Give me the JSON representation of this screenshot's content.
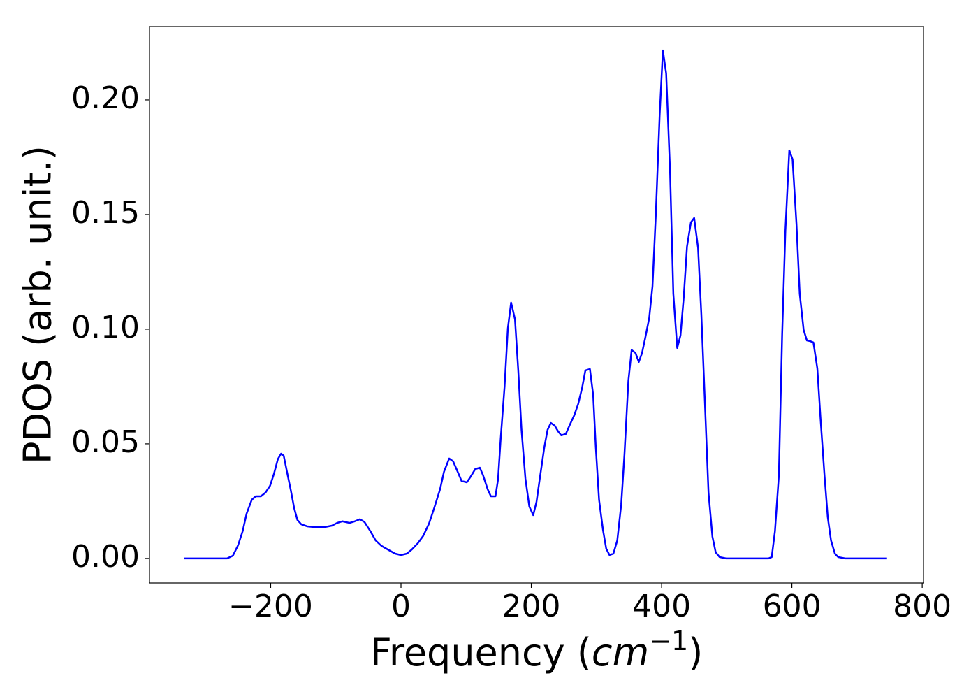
{
  "chart_data": {
    "type": "line",
    "ylabel": "PDOS (arb. unit.)",
    "xlabel": {
      "text": "Frequency (",
      "unit": "cm",
      "exponent": "−1",
      "close": ")"
    },
    "color": "#0000ff",
    "xlim": [
      -386,
      802
    ],
    "ylim": [
      -0.0107,
      0.232
    ],
    "xticks": [
      {
        "value": -200,
        "label": "−200"
      },
      0,
      200,
      400,
      600,
      800
    ],
    "yticks": [
      {
        "value": 0,
        "label": "0.00"
      },
      {
        "value": 0.05,
        "label": "0.05"
      },
      {
        "value": 0.1,
        "label": "0.10"
      },
      {
        "value": 0.15,
        "label": "0.15"
      },
      {
        "value": 0.2,
        "label": "0.20"
      }
    ],
    "grid": false,
    "x": [
      -333,
      -267,
      -258,
      -250,
      -243,
      -237,
      -229,
      -223,
      -215,
      -208,
      -201,
      -195,
      -189,
      -184,
      -180,
      -175,
      -169,
      -164,
      -159,
      -153,
      -144,
      -133,
      -117,
      -106,
      -98,
      -90,
      -79,
      -71,
      -63,
      -56,
      -47,
      -39,
      -30,
      -19,
      -9,
      0,
      9,
      17,
      26,
      34,
      43,
      51,
      60,
      66,
      74,
      80,
      87,
      93,
      101,
      107,
      114,
      121,
      126,
      133,
      138,
      145,
      149,
      153,
      159,
      164,
      169,
      175,
      180,
      185,
      191,
      197,
      203,
      208,
      213,
      220,
      225,
      230,
      236,
      241,
      246,
      253,
      259,
      266,
      272,
      278,
      283,
      290,
      295,
      299,
      304,
      310,
      315,
      320,
      326,
      332,
      338,
      343,
      349,
      354,
      360,
      365,
      370,
      375,
      381,
      386,
      391,
      397,
      402,
      407,
      413,
      418,
      424,
      429,
      434,
      439,
      445,
      450,
      456,
      461,
      466,
      472,
      478,
      483,
      489,
      499,
      564,
      569,
      574,
      580,
      585,
      590,
      596,
      601,
      607,
      612,
      618,
      623,
      628,
      633,
      639,
      644,
      650,
      655,
      660,
      666,
      671,
      682,
      746
    ],
    "values": [
      0,
      0,
      0.0012,
      0.0058,
      0.0119,
      0.0195,
      0.0256,
      0.0271,
      0.0271,
      0.0287,
      0.0317,
      0.0369,
      0.0433,
      0.0457,
      0.0448,
      0.0378,
      0.0296,
      0.022,
      0.0168,
      0.0149,
      0.014,
      0.0137,
      0.0137,
      0.0143,
      0.0155,
      0.0162,
      0.0155,
      0.0162,
      0.0171,
      0.0159,
      0.0119,
      0.0079,
      0.0055,
      0.0037,
      0.0021,
      0.0015,
      0.0021,
      0.004,
      0.0067,
      0.0098,
      0.0152,
      0.022,
      0.0302,
      0.0378,
      0.0436,
      0.0424,
      0.0378,
      0.0338,
      0.0332,
      0.0357,
      0.039,
      0.0396,
      0.0363,
      0.0302,
      0.0271,
      0.0271,
      0.0345,
      0.0521,
      0.075,
      0.1003,
      0.1116,
      0.1043,
      0.082,
      0.0561,
      0.0348,
      0.0226,
      0.0189,
      0.0247,
      0.0348,
      0.0485,
      0.0561,
      0.0591,
      0.0579,
      0.0555,
      0.0537,
      0.0543,
      0.0582,
      0.0625,
      0.0674,
      0.0744,
      0.082,
      0.0826,
      0.0713,
      0.0485,
      0.0256,
      0.0125,
      0.0043,
      0.0015,
      0.0021,
      0.0079,
      0.0235,
      0.0454,
      0.0774,
      0.0909,
      0.0896,
      0.0857,
      0.0896,
      0.0963,
      0.1049,
      0.1186,
      0.1491,
      0.1933,
      0.2216,
      0.2116,
      0.1689,
      0.1155,
      0.0918,
      0.0973,
      0.114,
      0.136,
      0.1466,
      0.1485,
      0.1354,
      0.1064,
      0.0713,
      0.0287,
      0.0095,
      0.0027,
      0.0006,
      0,
      0,
      0.0006,
      0.0119,
      0.0363,
      0.0973,
      0.143,
      0.178,
      0.1741,
      0.146,
      0.1155,
      0.0997,
      0.0951,
      0.0948,
      0.0942,
      0.0829,
      0.0607,
      0.0363,
      0.018,
      0.0079,
      0.0021,
      0.0006,
      0,
      0
    ]
  }
}
